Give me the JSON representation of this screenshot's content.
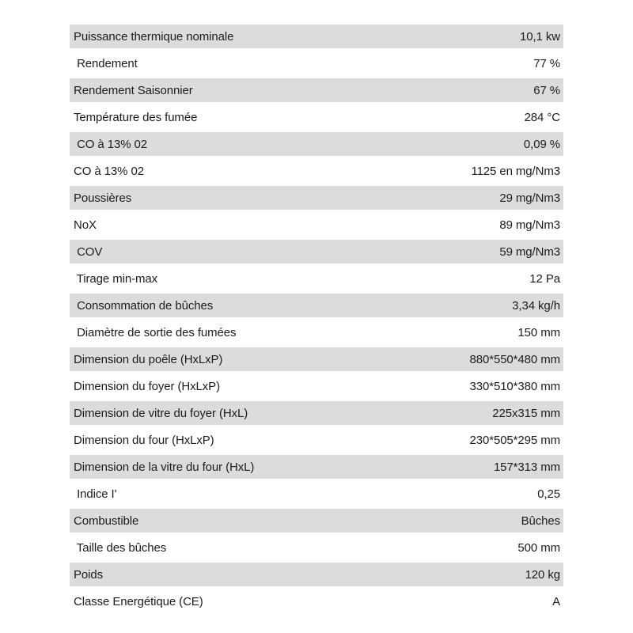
{
  "colors": {
    "page_bg": "#ffffff",
    "shaded_row_bg": "#dcdcdc",
    "plain_row_bg": "#ffffff",
    "text": "#1c1c1c"
  },
  "specs": {
    "rows": [
      {
        "label": "Puissance thermique nominale",
        "value": "10,1 kw"
      },
      {
        "label": " Rendement",
        "value": "77 %"
      },
      {
        "label": "Rendement Saisonnier",
        "value": "67 %"
      },
      {
        "label": "Température des fumée",
        "value": "284 °C"
      },
      {
        "label": " CO à 13% 02",
        "value": "0,09 %"
      },
      {
        "label": "CO à 13% 02",
        "value": "1125 en mg/Nm3"
      },
      {
        "label": "Poussières",
        "value": "29 mg/Nm3"
      },
      {
        "label": "NoX",
        "value": "89 mg/Nm3"
      },
      {
        "label": " COV",
        "value": "59 mg/Nm3"
      },
      {
        "label": " Tirage min-max",
        "value": "12 Pa"
      },
      {
        "label": " Consommation de bûches",
        "value": "3,34 kg/h"
      },
      {
        "label": " Diamètre de sortie des fumées",
        "value": "150 mm"
      },
      {
        "label": "Dimension du poêle (HxLxP)",
        "value": "880*550*480 mm"
      },
      {
        "label": "Dimension du foyer (HxLxP)",
        "value": "330*510*380 mm"
      },
      {
        "label": "Dimension de vitre du foyer (HxL)",
        "value": "225x315 mm"
      },
      {
        "label": "Dimension du four (HxLxP)",
        "value": "230*505*295 mm"
      },
      {
        "label": "Dimension de la vitre du four (HxL)",
        "value": "157*313 mm"
      },
      {
        "label": " Indice I'",
        "value": "0,25"
      },
      {
        "label": "Combustible",
        "value": "Bûches"
      },
      {
        "label": " Taille des bûches",
        "value": "500 mm"
      },
      {
        "label": "Poids",
        "value": "120 kg"
      },
      {
        "label": "Classe Energétique (CE)",
        "value": "A"
      }
    ]
  }
}
